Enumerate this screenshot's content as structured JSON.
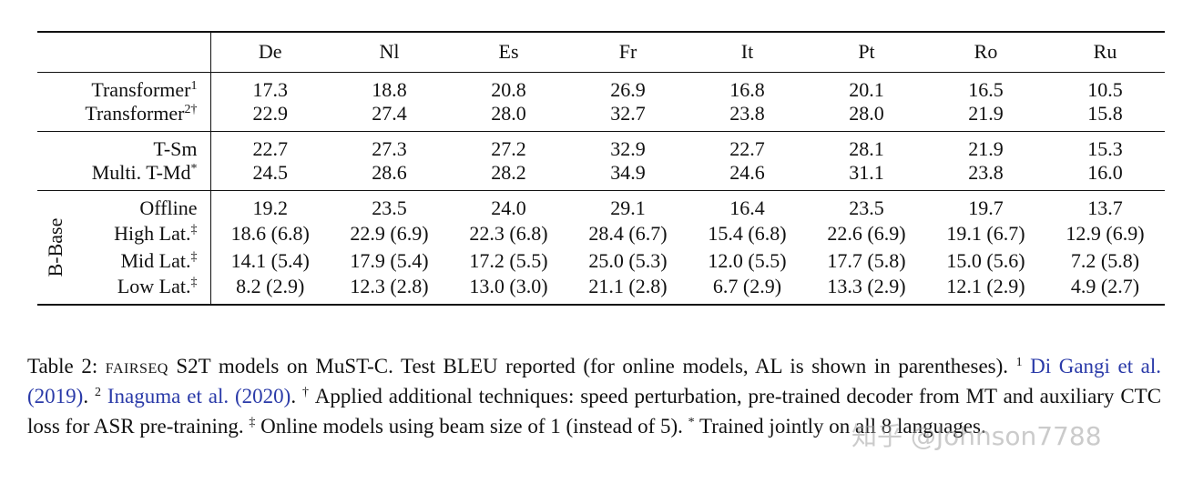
{
  "table": {
    "columns": [
      "De",
      "Nl",
      "Es",
      "Fr",
      "It",
      "Pt",
      "Ro",
      "Ru"
    ],
    "groups": [
      {
        "label": "",
        "rows": [
          {
            "name": "Transformer",
            "mark": "1",
            "values": [
              "17.3",
              "18.8",
              "20.8",
              "26.9",
              "16.8",
              "20.1",
              "16.5",
              "10.5"
            ]
          },
          {
            "name": "Transformer",
            "mark": "2†",
            "values": [
              "22.9",
              "27.4",
              "28.0",
              "32.7",
              "23.8",
              "28.0",
              "21.9",
              "15.8"
            ]
          }
        ]
      },
      {
        "label": "",
        "rows": [
          {
            "name": "T-Sm",
            "mark": "",
            "values": [
              "22.7",
              "27.3",
              "27.2",
              "32.9",
              "22.7",
              "28.1",
              "21.9",
              "15.3"
            ]
          },
          {
            "name": "Multi. T-Md",
            "mark": "*",
            "values": [
              "24.5",
              "28.6",
              "28.2",
              "34.9",
              "24.6",
              "31.1",
              "23.8",
              "16.0"
            ]
          }
        ]
      },
      {
        "label": "B-Base",
        "rows": [
          {
            "name": "Offline",
            "mark": "",
            "values": [
              "19.2",
              "23.5",
              "24.0",
              "29.1",
              "16.4",
              "23.5",
              "19.7",
              "13.7"
            ]
          },
          {
            "name": "High Lat.",
            "mark": "‡",
            "values": [
              "18.6 (6.8)",
              "22.9 (6.9)",
              "22.3 (6.8)",
              "28.4 (6.7)",
              "15.4 (6.8)",
              "22.6 (6.9)",
              "19.1 (6.7)",
              "12.9 (6.9)"
            ]
          },
          {
            "name": "Mid Lat.",
            "mark": "‡",
            "values": [
              "14.1 (5.4)",
              "17.9 (5.4)",
              "17.2 (5.5)",
              "25.0 (5.3)",
              "12.0 (5.5)",
              "17.7 (5.8)",
              "15.0 (5.6)",
              "7.2 (5.8)"
            ]
          },
          {
            "name": "Low Lat.",
            "mark": "‡",
            "values": [
              "8.2 (2.9)",
              "12.3 (2.8)",
              "13.0 (3.0)",
              "21.1 (2.8)",
              "6.7 (2.9)",
              "13.3 (2.9)",
              "12.1 (2.9)",
              "4.9 (2.7)"
            ]
          }
        ]
      }
    ]
  },
  "caption": {
    "prefix": "Table 2: ",
    "smallcaps": "fairseq",
    "text1": " S2T models on MuST-C. Test BLEU reported (for online models, AL is shown in parentheses).",
    "fn1_mark": "1",
    "cite1": "Di Gangi et al. (2019)",
    "sep1": ". ",
    "fn2_mark": "2",
    "cite2": "Inaguma et al. (2020)",
    "sep2": ". ",
    "dagger": "†",
    "text2": " Applied additional techniques: speed perturbation, pre-trained decoder from MT and auxiliary CTC loss for ASR pre-training. ",
    "ddagger": "‡",
    "text3": " Online models using beam size of 1 (instead of 5). ",
    "star": "*",
    "text4": " Trained jointly on all 8 languages."
  },
  "watermark": "知乎 @Johnson7788"
}
